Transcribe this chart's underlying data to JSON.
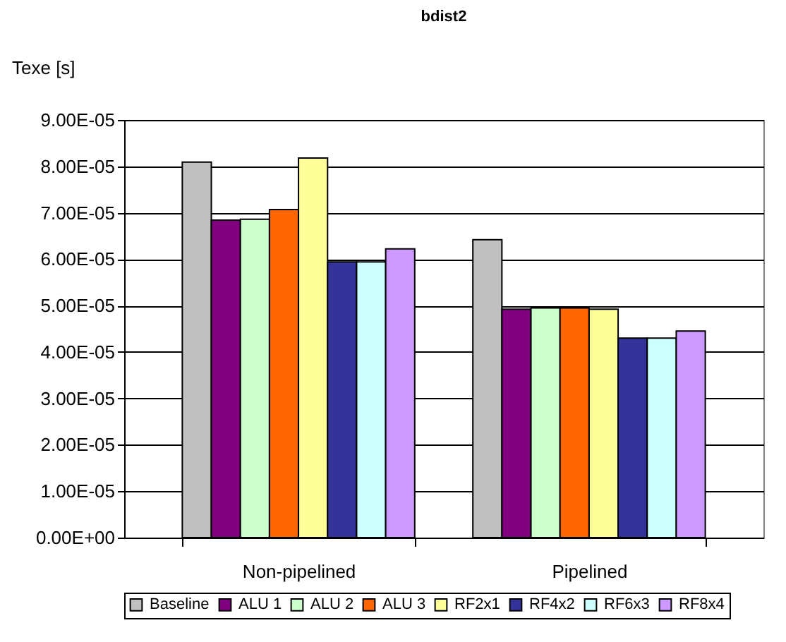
{
  "chart_data": {
    "type": "bar",
    "title": "bdist2",
    "ylabel": "Texe [s]",
    "categories": [
      "Non-pipelined",
      "Pipelined"
    ],
    "series": [
      {
        "name": "Baseline",
        "color": "#c0c0c0",
        "values": [
          8.09e-05,
          6.42e-05
        ]
      },
      {
        "name": "ALU 1",
        "color": "#800080",
        "values": [
          6.84e-05,
          4.92e-05
        ]
      },
      {
        "name": "ALU 2",
        "color": "#ccffcc",
        "values": [
          6.86e-05,
          4.95e-05
        ]
      },
      {
        "name": "ALU 3",
        "color": "#ff6600",
        "values": [
          7.07e-05,
          4.95e-05
        ]
      },
      {
        "name": "RF2x1",
        "color": "#ffff99",
        "values": [
          8.18e-05,
          4.92e-05
        ]
      },
      {
        "name": "RF4x2",
        "color": "#333399",
        "values": [
          5.94e-05,
          4.3e-05
        ]
      },
      {
        "name": "RF6x3",
        "color": "#ccffff",
        "values": [
          5.94e-05,
          4.3e-05
        ]
      },
      {
        "name": "RF8x4",
        "color": "#cc99ff",
        "values": [
          6.22e-05,
          4.45e-05
        ]
      }
    ],
    "ylim": [
      0,
      9e-05
    ],
    "yticks": [
      {
        "value": 0,
        "label": "0.00E+00"
      },
      {
        "value": 1e-05,
        "label": "1.00E-05"
      },
      {
        "value": 2e-05,
        "label": "2.00E-05"
      },
      {
        "value": 3e-05,
        "label": "3.00E-05"
      },
      {
        "value": 4e-05,
        "label": "4.00E-05"
      },
      {
        "value": 5e-05,
        "label": "5.00E-05"
      },
      {
        "value": 6e-05,
        "label": "6.00E-05"
      },
      {
        "value": 7e-05,
        "label": "7.00E-05"
      },
      {
        "value": 8e-05,
        "label": "8.00E-05"
      },
      {
        "value": 9e-05,
        "label": "9.00E-05"
      }
    ],
    "grid": "y",
    "legend": "bottom"
  }
}
